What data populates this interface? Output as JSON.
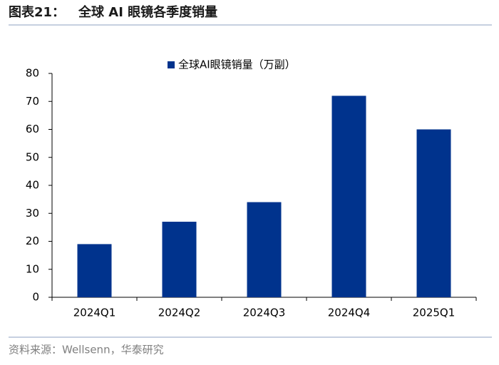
{
  "chart_data": {
    "type": "bar",
    "figure_label": "图表21：",
    "title": "全球 AI 眼镜各季度销量",
    "source": "资料来源：Wellsenn，华泰研究",
    "categories": [
      "2024Q1",
      "2024Q2",
      "2024Q3",
      "2024Q4",
      "2025Q1"
    ],
    "series": [
      {
        "name": "全球AI眼镜销量（万副）",
        "color": "#00338d",
        "values": [
          19,
          27,
          34,
          72,
          60
        ]
      }
    ],
    "ylim": [
      0,
      80
    ],
    "yticks": [
      0,
      10,
      20,
      30,
      40,
      50,
      60,
      70,
      80
    ],
    "grid": false
  }
}
